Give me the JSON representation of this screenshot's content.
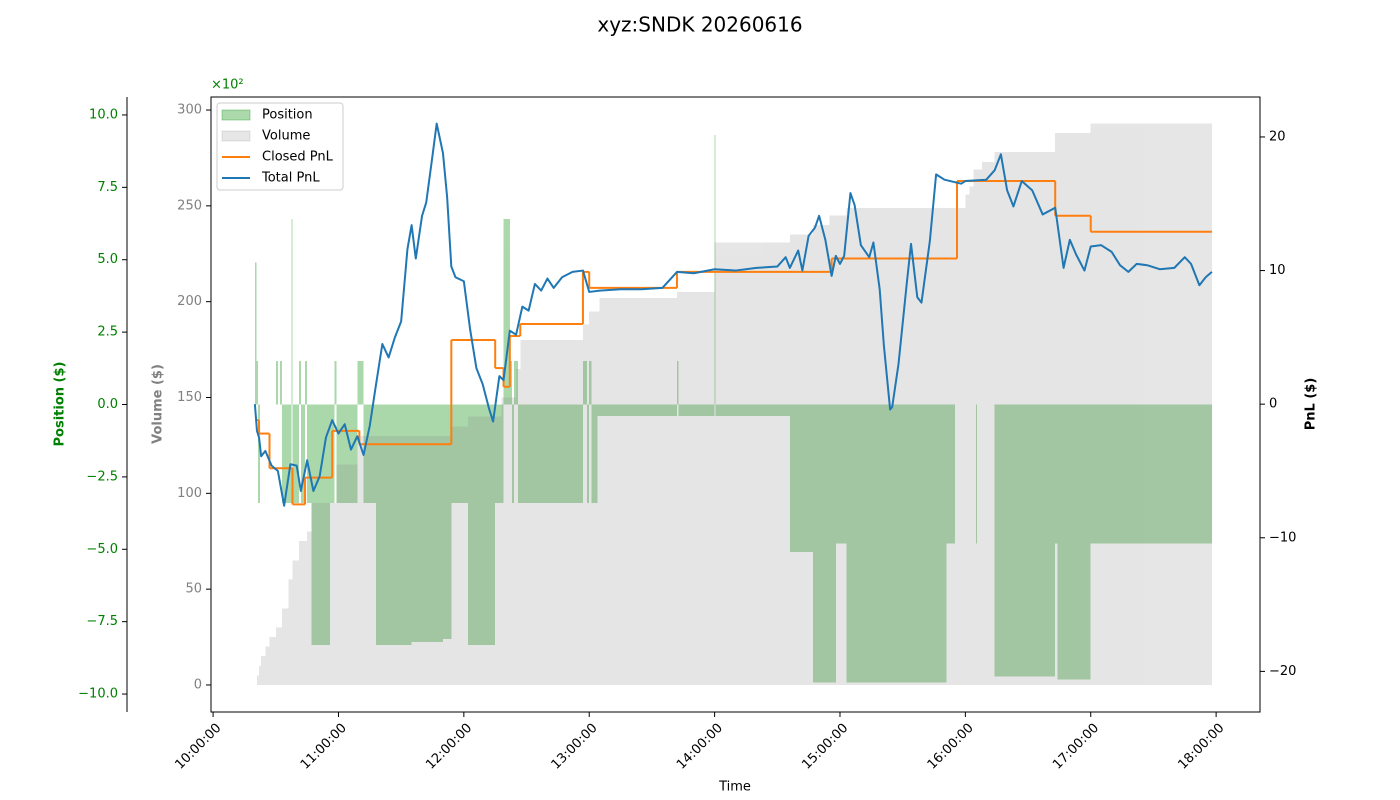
{
  "chart_data": {
    "type": "line",
    "title": "xyz:SNDK 20260616",
    "x_label": "Time",
    "xlim": [
      "09:59:00",
      "18:21:00"
    ],
    "xticks": [
      "10:00:00",
      "11:00:00",
      "12:00:00",
      "13:00:00",
      "14:00:00",
      "15:00:00",
      "16:00:00",
      "17:00:00",
      "18:00:00"
    ],
    "legend": "upper left",
    "axes": {
      "position": {
        "label": "Position ($)",
        "color": "#008000",
        "ylim": [
          -10.62,
          10.62
        ],
        "yticks": [
          {
            "value": -10,
            "label": "−10.0"
          },
          {
            "value": -7.5,
            "label": "−7.5"
          },
          {
            "value": -5,
            "label": "−5.0"
          },
          {
            "value": -2.5,
            "label": "−2.5"
          },
          {
            "value": 0,
            "label": "0.0"
          },
          {
            "value": 2.5,
            "label": "2.5"
          },
          {
            "value": 5,
            "label": "5.0"
          },
          {
            "value": 7.5,
            "label": "7.5"
          },
          {
            "value": 10,
            "label": "10.0"
          }
        ]
      },
      "volume": {
        "label": "Volume ($)",
        "color": "#808080",
        "offset_label": "×10²",
        "ylim": [
          -14.1,
          306.8
        ],
        "yticks": [
          0,
          50,
          100,
          150,
          200,
          250,
          300
        ]
      },
      "pnl": {
        "label": "PnL ($)",
        "color": "#000000",
        "ylim": [
          -23.04,
          22.99
        ],
        "yticks": [
          {
            "value": -20,
            "label": "−20"
          },
          {
            "value": -10,
            "label": "−10"
          },
          0,
          10,
          20
        ]
      }
    },
    "series": [
      {
        "name": "Position",
        "kind": "area",
        "axis": "position",
        "drawstyle": "steps-post",
        "color": "#2ca02c",
        "alpha": 0.4,
        "x": [
          "10:20:00",
          "10:20:40",
          "10:21:30",
          "10:22:30",
          "10:30:00",
          "10:31:00",
          "10:32:00",
          "10:33:00",
          "10:37:30",
          "10:38:00",
          "10:41:00",
          "10:42:00",
          "10:44:00",
          "10:45:00",
          "10:47:00",
          "10:56:00",
          "10:58:00",
          "10:59:00",
          "11:09:00",
          "11:12:00",
          "11:18:00",
          "11:35:00",
          "11:50:00",
          "11:54:00",
          "12:02:00",
          "12:15:00",
          "12:19:00",
          "12:22:00",
          "12:23:00",
          "12:24:00",
          "12:26:00",
          "12:57:00",
          "12:59:00",
          "13:00:00",
          "13:01:00",
          "13:04:00",
          "13:42:00",
          "13:42:40",
          "13:59:50",
          "14:00:20",
          "14:36:00",
          "14:47:00",
          "14:58:00",
          "15:03:00",
          "15:51:00",
          "15:55:00",
          "16:05:00",
          "16:05:40",
          "16:14:00",
          "16:43:00",
          "16:44:00",
          "17:00:00",
          "17:58:00"
        ],
        "values": [
          4.9,
          1.5,
          -3.4,
          0,
          1.5,
          0,
          1.5,
          -3.4,
          6.4,
          -3.4,
          1.5,
          -3.4,
          1.5,
          -3.4,
          -8.3,
          -3.4,
          1.5,
          -3.4,
          1.5,
          -3.4,
          -8.3,
          -8.2,
          -8.1,
          -3.4,
          -8.3,
          -3.4,
          6.4,
          1.5,
          -3.4,
          1.5,
          -3.4,
          1.5,
          -3.4,
          1.5,
          -3.4,
          -0.4,
          1.5,
          -0.4,
          9.3,
          -0.4,
          -5.1,
          -9.6,
          -4.8,
          -9.6,
          -4.8,
          0,
          -4.8,
          0,
          -9.4,
          -4.8,
          -9.5,
          -4.8,
          -4.8
        ]
      },
      {
        "name": "Volume",
        "kind": "area",
        "axis": "volume",
        "drawstyle": "steps-post",
        "color": "#808080",
        "alpha": 0.2,
        "x": [
          "10:20:00",
          "10:21:00",
          "10:22:00",
          "10:23:00",
          "10:25:00",
          "10:27:00",
          "10:30:00",
          "10:33:00",
          "10:36:00",
          "10:38:00",
          "10:41:00",
          "10:45:00",
          "10:47:00",
          "10:59:00",
          "11:09:00",
          "11:54:00",
          "12:02:00",
          "12:18:00",
          "12:25:00",
          "12:27:00",
          "12:57:00",
          "13:00:00",
          "13:05:00",
          "13:42:00",
          "14:00:00",
          "14:36:00",
          "14:47:00",
          "14:55:00",
          "15:03:00",
          "16:00:00",
          "16:02:00",
          "16:04:00",
          "16:08:00",
          "16:14:00",
          "16:43:00",
          "17:00:00",
          "17:58:00"
        ],
        "values": [
          0,
          5,
          10,
          15,
          20,
          25,
          30,
          40,
          55,
          65,
          75,
          80,
          95,
          115,
          130,
          135,
          140,
          150,
          165,
          180,
          188,
          195,
          202,
          205,
          231,
          235,
          240,
          245,
          249,
          256,
          260,
          269,
          273,
          278,
          288,
          293,
          293
        ]
      },
      {
        "name": "Closed PnL",
        "kind": "line",
        "axis": "pnl",
        "drawstyle": "steps-post",
        "color": "#ff7f0e",
        "x": [
          "10:21:00",
          "10:22:00",
          "10:27:00",
          "10:38:00",
          "10:44:00",
          "10:57:00",
          "11:10:00",
          "11:54:00",
          "12:15:00",
          "12:19:00",
          "12:22:00",
          "12:27:00",
          "12:57:00",
          "13:00:00",
          "13:42:00",
          "14:56:00",
          "15:56:00",
          "16:43:00",
          "17:00:00",
          "17:58:00"
        ],
        "values": [
          -1.2,
          -2.2,
          -4.8,
          -7.5,
          -5.5,
          -2.0,
          -3.0,
          4.8,
          2.7,
          1.3,
          5.1,
          6.0,
          9.9,
          8.7,
          9.9,
          10.9,
          16.7,
          14.1,
          12.9,
          12.9
        ]
      },
      {
        "name": "Total PnL",
        "kind": "line",
        "axis": "pnl",
        "color": "#1f77b4",
        "x": [
          "10:20:00",
          "10:21:00",
          "10:22:00",
          "10:23:00",
          "10:25:00",
          "10:28:00",
          "10:31:00",
          "10:34:00",
          "10:37:00",
          "10:40:00",
          "10:42:00",
          "10:45:00",
          "10:48:00",
          "10:51:00",
          "10:54:00",
          "10:57:00",
          "11:00:00",
          "11:03:00",
          "11:06:00",
          "11:09:00",
          "11:12:00",
          "11:15:00",
          "11:18:00",
          "11:21:00",
          "11:24:00",
          "11:27:00",
          "11:30:00",
          "11:33:00",
          "11:35:00",
          "11:37:00",
          "11:40:00",
          "11:42:00",
          "11:45:00",
          "11:47:00",
          "11:50:00",
          "11:52:00",
          "11:54:00",
          "11:56:00",
          "12:00:00",
          "12:03:00",
          "12:06:00",
          "12:09:00",
          "12:12:00",
          "12:14:00",
          "12:17:00",
          "12:19:00",
          "12:22:00",
          "12:25:00",
          "12:28:00",
          "12:31:00",
          "12:34:00",
          "12:37:00",
          "12:40:00",
          "12:43:00",
          "12:47:00",
          "12:52:00",
          "12:57:00",
          "13:00:00",
          "13:05:00",
          "13:15:00",
          "13:25:00",
          "13:35:00",
          "13:42:00",
          "13:50:00",
          "14:00:00",
          "14:10:00",
          "14:20:00",
          "14:30:00",
          "14:34:00",
          "14:36:00",
          "14:40:00",
          "14:42:00",
          "14:45:00",
          "14:48:00",
          "14:50:00",
          "14:53:00",
          "14:56:00",
          "14:58:00",
          "15:00:00",
          "15:02:00",
          "15:05:00",
          "15:07:00",
          "15:10:00",
          "15:14:00",
          "15:16:00",
          "15:19:00",
          "15:21:00",
          "15:24:00",
          "15:25:00",
          "15:28:00",
          "15:32:00",
          "15:34:00",
          "15:37:00",
          "15:39:00",
          "15:43:00",
          "15:46:00",
          "15:50:00",
          "15:58:00",
          "16:00:00",
          "16:10:00",
          "16:14:00",
          "16:17:00",
          "16:20:00",
          "16:23:00",
          "16:27:00",
          "16:32:00",
          "16:37:00",
          "16:43:00",
          "16:47:00",
          "16:50:00",
          "16:53:00",
          "16:57:00",
          "17:00:00",
          "17:05:00",
          "17:10:00",
          "17:14:00",
          "17:18:00",
          "17:22:00",
          "17:27:00",
          "17:33:00",
          "17:40:00",
          "17:45:00",
          "17:48:00",
          "17:52:00",
          "17:55:00",
          "17:58:00"
        ],
        "values": [
          0,
          -2,
          -2.5,
          -3.9,
          -3.5,
          -4.6,
          -5,
          -7.6,
          -4.5,
          -4.6,
          -6.5,
          -4.2,
          -6.5,
          -5.4,
          -2.5,
          -1.2,
          -2.2,
          -1.5,
          -3.4,
          -2.4,
          -3.8,
          -1.6,
          1.5,
          4.5,
          3.5,
          5,
          6.2,
          11.6,
          13.4,
          10.9,
          14.1,
          15.1,
          18.6,
          21,
          18.8,
          15.5,
          10.3,
          9.5,
          9.2,
          5.6,
          2.7,
          1.5,
          -0.3,
          -1.3,
          2.1,
          1.8,
          5.5,
          5.2,
          7.3,
          7.0,
          9.0,
          8.5,
          9.4,
          8.7,
          9.5,
          9.9,
          10.0,
          8.4,
          8.5,
          8.6,
          8.6,
          8.7,
          9.9,
          9.8,
          10.1,
          10.0,
          10.2,
          10.3,
          11.0,
          10.2,
          11.5,
          10.0,
          12.6,
          13.2,
          14.1,
          12.3,
          9.6,
          11.1,
          10.5,
          11.1,
          15.8,
          14.9,
          11.9,
          11.0,
          12.1,
          8.6,
          4.4,
          -0.4,
          -0.2,
          3.0,
          9.1,
          12.0,
          8.0,
          7.6,
          12.2,
          17.2,
          16.8,
          16.5,
          16.7,
          16.8,
          17.5,
          18.7,
          16.0,
          14.8,
          16.7,
          16.0,
          14.2,
          14.7,
          10.2,
          12.3,
          11.2,
          10.0,
          11.8,
          11.9,
          11.4,
          10.4,
          9.9,
          10.5,
          10.4,
          10.1,
          10.2,
          11.0,
          10.5,
          8.9,
          9.5,
          9.9
        ]
      }
    ]
  }
}
